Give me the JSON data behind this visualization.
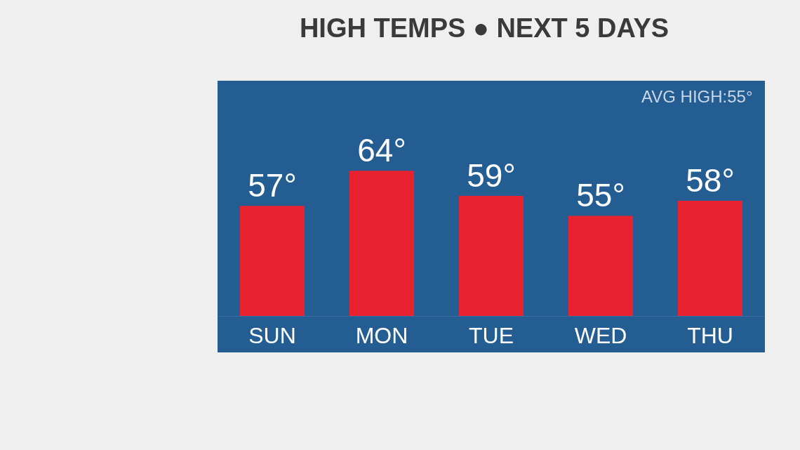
{
  "chart_data": {
    "type": "bar",
    "title": "HIGH TEMPS ● NEXT 5 DAYS",
    "categories": [
      "SUN",
      "MON",
      "TUE",
      "WED",
      "THU"
    ],
    "values": [
      57,
      64,
      59,
      55,
      58
    ],
    "value_labels": [
      "57°",
      "64°",
      "59°",
      "55°",
      "58°"
    ],
    "color": "#e8232f",
    "ylim": [
      35,
      82
    ],
    "tick_labels": "x",
    "grid": false,
    "legend": false,
    "annotations": [
      "AVG HIGH:55°"
    ]
  }
}
